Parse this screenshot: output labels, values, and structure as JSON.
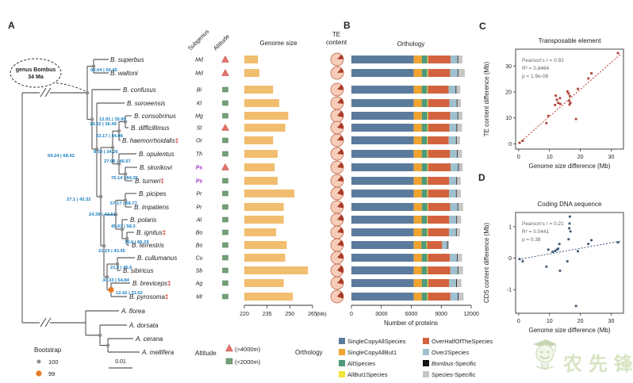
{
  "figure": {
    "panel_labels": {
      "a": "A",
      "b": "B",
      "c": "C",
      "d": "D"
    },
    "tree": {
      "callout": {
        "line1": "genus Bombus",
        "line2": "34 Ma"
      },
      "scale_bar_label": "0.01",
      "bootstrap_legend": {
        "title": "Bootstrap",
        "items": [
          {
            "label": "100",
            "color": "#8c8c8c"
          },
          {
            "label": "99",
            "color": "#e67a22"
          }
        ]
      },
      "node_labels": {
        "MD": "93.04 | 50.45",
        "R2": "34.02 | 36.49",
        "R3": "59.24 | 68.42",
        "R4": "27.1 | 42.32",
        "R5": "21.23 | 43.45",
        "X1": "12.91 | 35.85",
        "X2": "22.17 | 44.08",
        "X3": "8.54 | 34.26",
        "X4": "27.96 | 46.57",
        "X5": "76.14 | 84.35",
        "Y1": "57.17 | 66.77",
        "Y2": "24.39 | 42.61",
        "Y3": "45.67 | 58.3",
        "Y4": "79.6 | 85.29",
        "Z1": "21.4 | 45.6",
        "Z2": "30.33 | 54.84",
        "Z3": "12.42 | 31.62"
      },
      "outgroup_species": [
        "A. florea",
        "A. dorsata",
        "A. cerana",
        "A. mellifera"
      ]
    },
    "columns": {
      "subgenus": "Subgenus",
      "altitude": "Altitude",
      "genome_size": "Genome size",
      "te_line1": "TE",
      "te_line2": "content"
    },
    "species": [
      {
        "name": "B. superbus",
        "dagger": false,
        "subgenus": "Md",
        "highlight": false,
        "altitude": "high"
      },
      {
        "name": "B. waltoni",
        "dagger": false,
        "subgenus": "Md",
        "highlight": false,
        "altitude": "high"
      },
      {
        "name": "B. confusus",
        "dagger": false,
        "subgenus": "Bi",
        "highlight": false,
        "altitude": "low"
      },
      {
        "name": "B. soroeensis",
        "dagger": false,
        "subgenus": "Kl",
        "highlight": false,
        "altitude": "low"
      },
      {
        "name": "B. consobrinus",
        "dagger": false,
        "subgenus": "Mg",
        "highlight": false,
        "altitude": "low"
      },
      {
        "name": "B. difficillimus",
        "dagger": false,
        "subgenus": "St",
        "highlight": false,
        "altitude": "high"
      },
      {
        "name": "B. haemorrhoidalis",
        "dagger": true,
        "subgenus": "Or",
        "highlight": false,
        "altitude": "low"
      },
      {
        "name": "B. opulentus",
        "dagger": false,
        "subgenus": "Th",
        "highlight": false,
        "altitude": "low"
      },
      {
        "name": "B. skorikovi",
        "dagger": false,
        "subgenus": "Ps",
        "highlight": true,
        "altitude": "high"
      },
      {
        "name": "B. turneri",
        "dagger": true,
        "subgenus": "Ps",
        "highlight": true,
        "altitude": "low"
      },
      {
        "name": "B. picipes",
        "dagger": false,
        "subgenus": "Pr",
        "highlight": false,
        "altitude": "low"
      },
      {
        "name": "B. impatiens",
        "dagger": false,
        "subgenus": "Pr",
        "highlight": false,
        "altitude": "low"
      },
      {
        "name": "B. polaris",
        "dagger": false,
        "subgenus": "Al",
        "highlight": false,
        "altitude": "low"
      },
      {
        "name": "B. ignitus",
        "dagger": true,
        "subgenus": "Bo",
        "highlight": false,
        "altitude": "low"
      },
      {
        "name": "B. terrestris",
        "dagger": false,
        "subgenus": "Bo",
        "highlight": false,
        "altitude": "low"
      },
      {
        "name": "B. cullumanus",
        "dagger": false,
        "subgenus": "Cu",
        "highlight": false,
        "altitude": "low"
      },
      {
        "name": "B. sibiricus",
        "dagger": false,
        "subgenus": "Sb",
        "highlight": false,
        "altitude": "low"
      },
      {
        "name": "B. breviceps",
        "dagger": true,
        "subgenus": "Ag",
        "highlight": false,
        "altitude": "low"
      },
      {
        "name": "B. pyrosoma",
        "dagger": true,
        "subgenus": "Ml",
        "highlight": false,
        "altitude": "low"
      }
    ],
    "altitude_legend": {
      "title": "Altitude",
      "high_label": "(>4000m)",
      "low_label": "(<2000m)",
      "high_color": "#e2726a",
      "low_color": "#74a078"
    },
    "orthology_legend_title": "Orthology",
    "watermark_text": "农先锋"
  },
  "chart_data": [
    {
      "type": "bar",
      "title": "Genome size",
      "orientation": "horizontal",
      "unit": "(Mb)",
      "xlim": [
        220,
        265
      ],
      "xticks": [
        220,
        235,
        250,
        265
      ],
      "bar_color": "#f1bd6f",
      "categories": [
        "B. superbus",
        "B. waltoni",
        "B. confusus",
        "B. soroeensis",
        "B. consobrinus",
        "B. difficillimus",
        "B. haemorrhoidalis",
        "B. opulentus",
        "B. skorikovi",
        "B. turneri",
        "B. picipes",
        "B. impatiens",
        "B. polaris",
        "B. ignitus",
        "B. terrestris",
        "B. cullumanus",
        "B. sibiricus",
        "B. breviceps",
        "B. pyrosoma"
      ],
      "values": [
        229,
        230,
        239,
        243,
        249,
        247,
        239,
        242,
        240,
        242,
        253,
        246,
        246,
        241,
        248,
        247,
        262,
        246,
        252
      ]
    },
    {
      "type": "pie",
      "title": "TE content",
      "te_color": "#a93c28",
      "rest_color": "#f7cdb9",
      "categories": [
        "B. superbus",
        "B. waltoni",
        "B. confusus",
        "B. soroeensis",
        "B. consobrinus",
        "B. difficillimus",
        "B. haemorrhoidalis",
        "B. opulentus",
        "B. skorikovi",
        "B. turneri",
        "B. picipes",
        "B. impatiens",
        "B. polaris",
        "B. ignitus",
        "B. terrestris",
        "B. cullumanus",
        "B. sibiricus",
        "B. breviceps",
        "B. pyrosoma"
      ],
      "values_pct": [
        13,
        13,
        15,
        16,
        18,
        17,
        15,
        16,
        16,
        16,
        19,
        17,
        17,
        16,
        17,
        17,
        21,
        17,
        19
      ]
    },
    {
      "type": "bar",
      "stacked": true,
      "title": "Orthology",
      "xlabel": "Number of proteins",
      "xlim": [
        0,
        12000
      ],
      "xticks": [
        0,
        3000,
        6000,
        9000,
        12000
      ],
      "categories": [
        "B. superbus",
        "B. waltoni",
        "B. confusus",
        "B. soroeensis",
        "B. consobrinus",
        "B. difficillimus",
        "B. haemorrhoidalis",
        "B. opulentus",
        "B. skorikovi",
        "B. turneri",
        "B. picipes",
        "B. impatiens",
        "B. polaris",
        "B. ignitus",
        "B. terrestris",
        "B. cullumanus",
        "B. sibiricus",
        "B. breviceps",
        "B. pyrosoma"
      ],
      "series": [
        {
          "name": "SingleCopyAllSpecies",
          "color": "#5b7b9c",
          "values": [
            6250,
            6250,
            6250,
            6250,
            6250,
            6250,
            6250,
            6250,
            6250,
            6250,
            6250,
            6250,
            6250,
            6250,
            6250,
            6250,
            6250,
            6250,
            6250
          ]
        },
        {
          "name": "SingleCopyAllBut1",
          "color": "#f0a330",
          "values": [
            800,
            810,
            790,
            800,
            810,
            800,
            790,
            800,
            810,
            790,
            800,
            810,
            790,
            800,
            760,
            800,
            790,
            810,
            800
          ]
        },
        {
          "name": "AllSpecies",
          "color": "#4f9a7a",
          "values": [
            560,
            550,
            540,
            560,
            550,
            560,
            540,
            550,
            560,
            540,
            550,
            560,
            540,
            550,
            520,
            550,
            540,
            560,
            550
          ]
        },
        {
          "name": "AllBut1Species",
          "color": "#f2e43a",
          "values": [
            70,
            80,
            70,
            70,
            80,
            70,
            70,
            80,
            70,
            70,
            80,
            70,
            70,
            80,
            60,
            70,
            70,
            80,
            70
          ]
        },
        {
          "name": "OverHalfOfTheSpecies",
          "color": "#d2633e",
          "values": [
            2250,
            2200,
            2100,
            2150,
            2200,
            2150,
            2100,
            2200,
            2250,
            2150,
            2100,
            2200,
            2150,
            2100,
            1500,
            2200,
            2250,
            2100,
            2250
          ]
        },
        {
          "name": "Over2Species",
          "color": "#9fc0cf",
          "values": [
            700,
            750,
            700,
            720,
            740,
            700,
            730,
            710,
            750,
            720,
            700,
            740,
            720,
            700,
            500,
            720,
            740,
            700,
            730
          ]
        },
        {
          "name": "Bombus-Specific",
          "color": "#141414",
          "values": [
            70,
            70,
            70,
            70,
            70,
            70,
            70,
            70,
            70,
            70,
            70,
            70,
            70,
            70,
            70,
            70,
            70,
            70,
            70
          ]
        },
        {
          "name": "Species-Specific",
          "color": "#c6c6c6",
          "values": [
            420,
            650,
            380,
            350,
            420,
            480,
            330,
            420,
            380,
            360,
            420,
            500,
            400,
            330,
            120,
            420,
            480,
            450,
            520
          ]
        }
      ],
      "legend_columns": [
        [
          0,
          1,
          2,
          3
        ],
        [
          4,
          5,
          6,
          7
        ]
      ]
    },
    {
      "type": "scatter",
      "title": "Transposable element",
      "xlabel": "Genome size difference (Mb)",
      "ylabel": "TE content difference (Mb)",
      "xticks": [
        0,
        10,
        20,
        30
      ],
      "yticks": [
        0,
        10,
        20,
        30
      ],
      "stats": [
        "Pearson's r = 0.92",
        "R² = 0.8464",
        "p = 1.9e-08"
      ],
      "point_color": "#b04038",
      "trend": {
        "x1": 0,
        "y1": 0.2,
        "x2": 33,
        "y2": 34.5,
        "color": "#c0392b"
      },
      "points": [
        [
          0.3,
          0.4
        ],
        [
          1.3,
          1.2
        ],
        [
          9,
          8
        ],
        [
          9.6,
          10.8
        ],
        [
          11.8,
          15
        ],
        [
          12,
          18.6
        ],
        [
          12.4,
          17
        ],
        [
          12.8,
          15.8
        ],
        [
          13.4,
          17.6
        ],
        [
          13.5,
          15.4
        ],
        [
          15.8,
          20.2
        ],
        [
          16.2,
          19.4
        ],
        [
          16.4,
          16.6
        ],
        [
          16.5,
          15.2
        ],
        [
          16.6,
          18.4
        ],
        [
          16.8,
          15.8
        ],
        [
          18.6,
          9.6
        ],
        [
          19.2,
          21.2
        ],
        [
          22.6,
          25.2
        ],
        [
          23.6,
          27.2
        ],
        [
          32.2,
          35
        ]
      ]
    },
    {
      "type": "scatter",
      "title": "Coding DNA sequence",
      "xlabel": "Genome size difference (Mb)",
      "ylabel": "CDS content difference (Mb)",
      "xticks": [
        0,
        10,
        20,
        30
      ],
      "yticks": [
        -1,
        0,
        1
      ],
      "stats": [
        "Pearson's r = 0.21",
        "R² = 0.0441",
        "p = 0.38"
      ],
      "point_color": "#3d5975",
      "trend": {
        "x1": 0,
        "y1": -0.04,
        "x2": 33,
        "y2": 0.54,
        "color": "#3d5975"
      },
      "points": [
        [
          0.3,
          -0.03
        ],
        [
          1.3,
          -0.1
        ],
        [
          9,
          -0.27
        ],
        [
          9.6,
          0.27
        ],
        [
          11,
          0.2
        ],
        [
          11.8,
          0.23
        ],
        [
          12.4,
          0.27
        ],
        [
          12.8,
          0.3
        ],
        [
          13.2,
          0.45
        ],
        [
          13.4,
          -0.4
        ],
        [
          15.8,
          -0.1
        ],
        [
          16.2,
          0.6
        ],
        [
          16.4,
          0.95
        ],
        [
          16.5,
          1.1
        ],
        [
          16.6,
          1.32
        ],
        [
          16.8,
          0.85
        ],
        [
          18.6,
          -1.52
        ],
        [
          19.2,
          0.22
        ],
        [
          22.6,
          0.45
        ],
        [
          23.6,
          0.57
        ],
        [
          32.2,
          0.5
        ]
      ]
    }
  ]
}
